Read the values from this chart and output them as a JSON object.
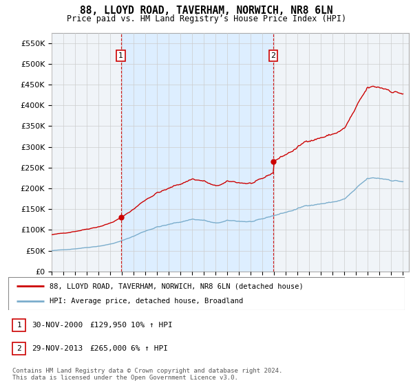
{
  "title": "88, LLOYD ROAD, TAVERHAM, NORWICH, NR8 6LN",
  "subtitle": "Price paid vs. HM Land Registry’s House Price Index (HPI)",
  "legend_line1": "88, LLOYD ROAD, TAVERHAM, NORWICH, NR8 6LN (detached house)",
  "legend_line2": "HPI: Average price, detached house, Broadland",
  "annotation1_label": "1",
  "annotation1_date": "30-NOV-2000",
  "annotation1_price": "£129,950",
  "annotation1_hpi": "10% ↑ HPI",
  "annotation2_label": "2",
  "annotation2_date": "29-NOV-2013",
  "annotation2_price": "£265,000",
  "annotation2_hpi": "6% ↑ HPI",
  "footer": "Contains HM Land Registry data © Crown copyright and database right 2024.\nThis data is licensed under the Open Government Licence v3.0.",
  "red_color": "#cc0000",
  "blue_color": "#7aadcc",
  "fill_color": "#ddeeff",
  "dashed_color": "#cc0000",
  "grid_color": "#cccccc",
  "bg_color": "#f0f4f8",
  "ylim": [
    0,
    575000
  ],
  "yticks": [
    0,
    50000,
    100000,
    150000,
    200000,
    250000,
    300000,
    350000,
    400000,
    450000,
    500000,
    550000
  ],
  "sale1_x": 2000.917,
  "sale1_y": 129950,
  "sale2_x": 2013.917,
  "sale2_y": 265000,
  "xmin": 1995.0,
  "xmax": 2025.5
}
